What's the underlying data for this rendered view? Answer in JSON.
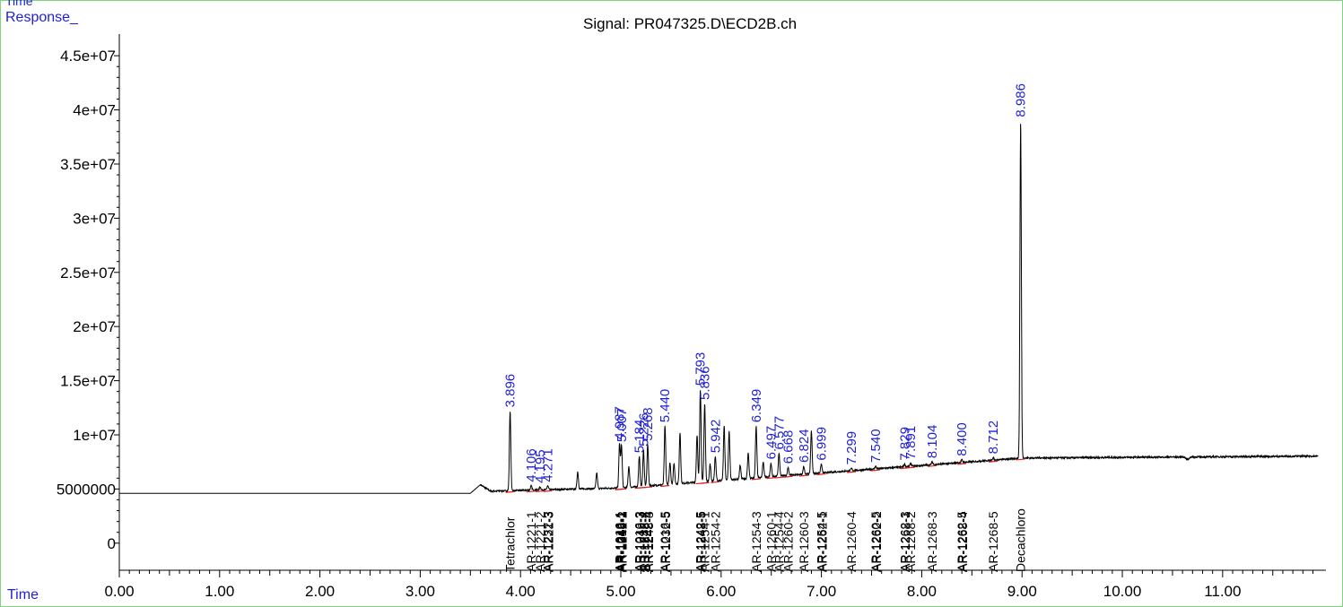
{
  "chart_data": {
    "type": "line",
    "title": "Signal: PR047325.D\\ECD2B.ch",
    "corner_label": "Time",
    "ylabel": "Response_",
    "xlabel": "Time",
    "xlim": [
      0,
      12.03
    ],
    "ylim": [
      -2500000,
      47000000
    ],
    "x_ticks": [
      0,
      1,
      2,
      3,
      4,
      5,
      6,
      7,
      8,
      9,
      10,
      11
    ],
    "x_tick_labels": [
      "0.00",
      "1.00",
      "2.00",
      "3.00",
      "4.00",
      "5.00",
      "6.00",
      "7.00",
      "8.00",
      "9.00",
      "10.00",
      "11.00"
    ],
    "y_ticks": [
      0,
      5000000,
      10000000,
      15000000,
      20000000,
      25000000,
      30000000,
      35000000,
      40000000,
      45000000
    ],
    "y_tick_labels": [
      "0",
      "5000000",
      "1e+07",
      "1.5e+07",
      "2e+07",
      "2.5e+07",
      "3e+07",
      "3.5e+07",
      "4e+07",
      "4.5e+07"
    ],
    "colors": {
      "trace": "#000000",
      "peak_label": "#1f1fd6",
      "baseline_mark": "#e02020",
      "frame": "#7fd67f"
    },
    "peaks": [
      {
        "rt": 3.896,
        "label": "3.896",
        "height": 12200000
      },
      {
        "rt": 4.106,
        "label": "4.106",
        "height": 5300000
      },
      {
        "rt": 4.195,
        "label": "4.195",
        "height": 5200000
      },
      {
        "rt": 4.271,
        "label": "4.271",
        "height": 5300000
      },
      {
        "rt": 4.987,
        "label": "4.987",
        "height": 9200000
      },
      {
        "rt": 5.007,
        "label": "5.007",
        "height": 9000000
      },
      {
        "rt": 5.184,
        "label": "5.184",
        "height": 8000000
      },
      {
        "rt": 5.226,
        "label": "5.226",
        "height": 8600000
      },
      {
        "rt": 5.268,
        "label": "5.268",
        "height": 9100000
      },
      {
        "rt": 5.44,
        "label": "5.440",
        "height": 10800000
      },
      {
        "rt": 5.793,
        "label": "5.793",
        "height": 14200000
      },
      {
        "rt": 5.836,
        "label": "5.836",
        "height": 12900000
      },
      {
        "rt": 5.942,
        "label": "5.942",
        "height": 8000000
      },
      {
        "rt": 6.349,
        "label": "6.349",
        "height": 10800000
      },
      {
        "rt": 6.497,
        "label": "6.497",
        "height": 7400000
      },
      {
        "rt": 6.577,
        "label": "6.577",
        "height": 8300000
      },
      {
        "rt": 6.668,
        "label": "6.668",
        "height": 7000000
      },
      {
        "rt": 6.824,
        "label": "6.824",
        "height": 7100000
      },
      {
        "rt": 6.999,
        "label": "6.999",
        "height": 7300000
      },
      {
        "rt": 7.299,
        "label": "7.299",
        "height": 6900000
      },
      {
        "rt": 7.54,
        "label": "7.540",
        "height": 7100000
      },
      {
        "rt": 7.829,
        "label": "7.829",
        "height": 7300000
      },
      {
        "rt": 7.891,
        "label": "7.891",
        "height": 7400000
      },
      {
        "rt": 8.104,
        "label": "8.104",
        "height": 7500000
      },
      {
        "rt": 8.4,
        "label": "8.400",
        "height": 7700000
      },
      {
        "rt": 8.712,
        "label": "8.712",
        "height": 7900000
      },
      {
        "rt": 8.986,
        "label": "8.986",
        "height": 39000000
      }
    ],
    "unlabeled_peaks": [
      {
        "rt": 4.57,
        "height": 6600000
      },
      {
        "rt": 4.76,
        "height": 6500000
      },
      {
        "rt": 5.08,
        "height": 7100000
      },
      {
        "rt": 5.49,
        "height": 7400000
      },
      {
        "rt": 5.53,
        "height": 7400000
      },
      {
        "rt": 5.59,
        "height": 10200000
      },
      {
        "rt": 5.76,
        "height": 10000000
      },
      {
        "rt": 5.89,
        "height": 7300000
      },
      {
        "rt": 6.03,
        "height": 10800000
      },
      {
        "rt": 6.08,
        "height": 10300000
      },
      {
        "rt": 6.19,
        "height": 7200000
      },
      {
        "rt": 6.27,
        "height": 8300000
      },
      {
        "rt": 6.42,
        "height": 7500000
      },
      {
        "rt": 6.9,
        "height": 10400000
      }
    ],
    "compound_names": [
      {
        "rt": 3.896,
        "label": "Tetrachlor"
      },
      {
        "rt": 4.106,
        "label": "AR-1221-1"
      },
      {
        "rt": 4.195,
        "label": "AR-1221-2"
      },
      {
        "rt": 4.271,
        "label": "AR-1232-3"
      },
      {
        "rt": 4.282,
        "label": "AR-1221-3"
      },
      {
        "rt": 4.987,
        "label": "AR-1016-1"
      },
      {
        "rt": 4.993,
        "label": "AR-1242-1"
      },
      {
        "rt": 4.999,
        "label": "AR-1248-1"
      },
      {
        "rt": 5.007,
        "label": "AR-1016-2"
      },
      {
        "rt": 5.013,
        "label": "AR-1242-2"
      },
      {
        "rt": 5.184,
        "label": "AR-1016-3"
      },
      {
        "rt": 5.193,
        "label": "AR-1242-3"
      },
      {
        "rt": 5.226,
        "label": "AR-1232-4"
      },
      {
        "rt": 5.235,
        "label": "AR-1248-2"
      },
      {
        "rt": 5.268,
        "label": "AR-1242-4"
      },
      {
        "rt": 5.277,
        "label": "AR-1248-3"
      },
      {
        "rt": 5.44,
        "label": "AR-1016-5"
      },
      {
        "rt": 5.448,
        "label": "AR-1232-5"
      },
      {
        "rt": 5.793,
        "label": "AR-1242-5"
      },
      {
        "rt": 5.799,
        "label": "AR-1248-5"
      },
      {
        "rt": 5.836,
        "label": "AR-1254-1"
      },
      {
        "rt": 5.942,
        "label": "AR-1254-2"
      },
      {
        "rt": 6.349,
        "label": "AR-1254-3"
      },
      {
        "rt": 6.497,
        "label": "AR-1260-1"
      },
      {
        "rt": 6.577,
        "label": "AR-1254-4"
      },
      {
        "rt": 6.668,
        "label": "AR-1260-2"
      },
      {
        "rt": 6.824,
        "label": "AR-1260-3"
      },
      {
        "rt": 6.999,
        "label": "AR-1254-5"
      },
      {
        "rt": 7.006,
        "label": "AR-1262-1"
      },
      {
        "rt": 7.299,
        "label": "AR-1260-4"
      },
      {
        "rt": 7.54,
        "label": "AR-1260-5"
      },
      {
        "rt": 7.547,
        "label": "AR-1262-2"
      },
      {
        "rt": 7.829,
        "label": "AR-1262-3"
      },
      {
        "rt": 7.836,
        "label": "AR-1268-1"
      },
      {
        "rt": 7.891,
        "label": "AR-1268-2"
      },
      {
        "rt": 8.104,
        "label": "AR-1268-3"
      },
      {
        "rt": 8.4,
        "label": "AR-1262-5"
      },
      {
        "rt": 8.406,
        "label": "AR-1268-4"
      },
      {
        "rt": 8.712,
        "label": "AR-1268-5"
      },
      {
        "rt": 8.986,
        "label": "Decachloro"
      }
    ]
  }
}
